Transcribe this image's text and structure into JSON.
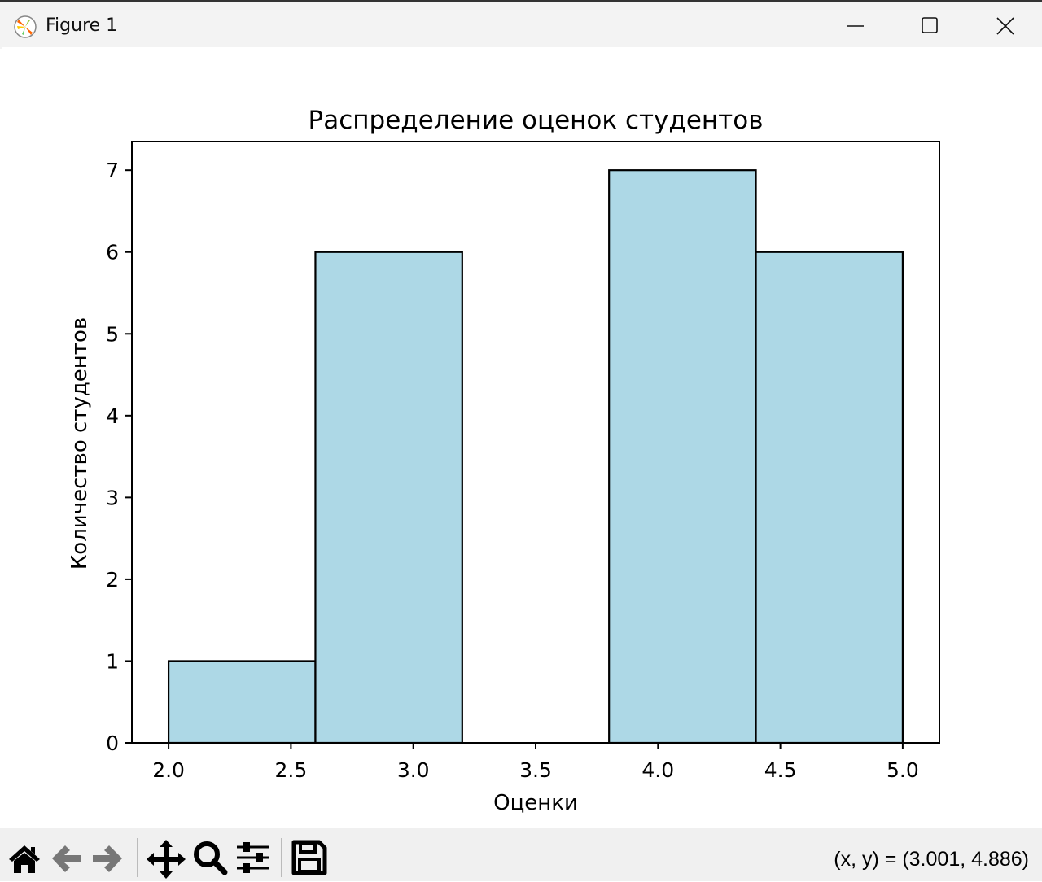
{
  "window": {
    "title": "Figure 1",
    "icon": "matplotlib-logo-icon",
    "controls": [
      "minimize-icon",
      "maximize-icon",
      "close-icon"
    ]
  },
  "toolbar": {
    "buttons": [
      "home-icon",
      "back-icon",
      "forward-icon",
      "pan-icon",
      "zoom-icon",
      "configure-subplots-icon",
      "save-icon"
    ],
    "coords": "(x, y) = (3.001, 4.886)"
  },
  "chart_data": {
    "type": "bar",
    "subtype": "histogram",
    "title": "Распределение оценок студентов",
    "xlabel": "Оценки",
    "ylabel": "Количество студентов",
    "bin_edges": [
      2.0,
      2.6,
      3.2,
      3.8,
      4.4,
      5.0
    ],
    "values": [
      1,
      6,
      0,
      7,
      6
    ],
    "xlim": [
      1.85,
      5.15
    ],
    "ylim": [
      0,
      7.35
    ],
    "xticks": [
      "2.0",
      "2.5",
      "3.0",
      "3.5",
      "4.0",
      "4.5",
      "5.0"
    ],
    "yticks": [
      "0",
      "1",
      "2",
      "3",
      "4",
      "5",
      "6",
      "7"
    ],
    "grid": false,
    "bar_color": "#add8e6",
    "edge_color": "#000000"
  }
}
